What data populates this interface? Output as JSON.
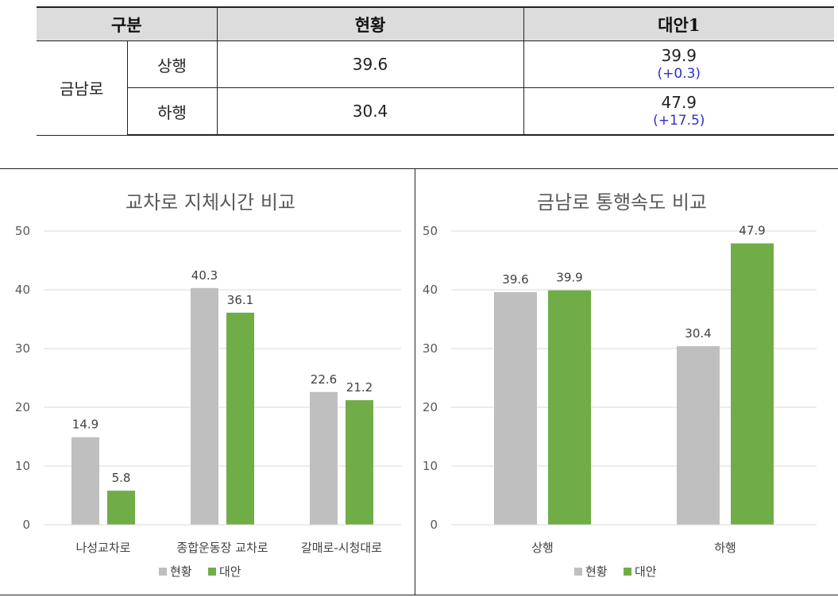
{
  "table": {
    "headers": [
      "구분",
      "현황",
      "대안1"
    ],
    "road": "금남로",
    "rows": [
      {
        "direction": "상행",
        "current": "39.6",
        "alt": "39.9",
        "delta": "(+0.3)"
      },
      {
        "direction": "하행",
        "current": "30.4",
        "alt": "47.9",
        "delta": "(+17.5)"
      }
    ]
  },
  "colors": {
    "current": "#bfbfbf",
    "alternative": "#70ad47"
  },
  "chart_data": [
    {
      "type": "bar",
      "title": "교차로 지체시간 비교",
      "categories": [
        "나성교차로",
        "종합운동장 교차로",
        "갈매로-시청대로"
      ],
      "series": [
        {
          "name": "현황",
          "values": [
            14.9,
            40.3,
            22.6
          ]
        },
        {
          "name": "대안",
          "values": [
            5.8,
            36.1,
            21.2
          ]
        }
      ],
      "ylim": [
        0,
        50
      ],
      "yticks": [
        0,
        10,
        20,
        30,
        40,
        50
      ],
      "legend": "bottom",
      "grid": true
    },
    {
      "type": "bar",
      "title": "금남로 통행속도 비교",
      "categories": [
        "상행",
        "하행"
      ],
      "series": [
        {
          "name": "현황",
          "values": [
            39.6,
            30.4
          ]
        },
        {
          "name": "대안",
          "values": [
            39.9,
            47.9
          ]
        }
      ],
      "ylim": [
        0,
        50
      ],
      "yticks": [
        0,
        10,
        20,
        30,
        40,
        50
      ],
      "legend": "bottom",
      "grid": true
    }
  ]
}
